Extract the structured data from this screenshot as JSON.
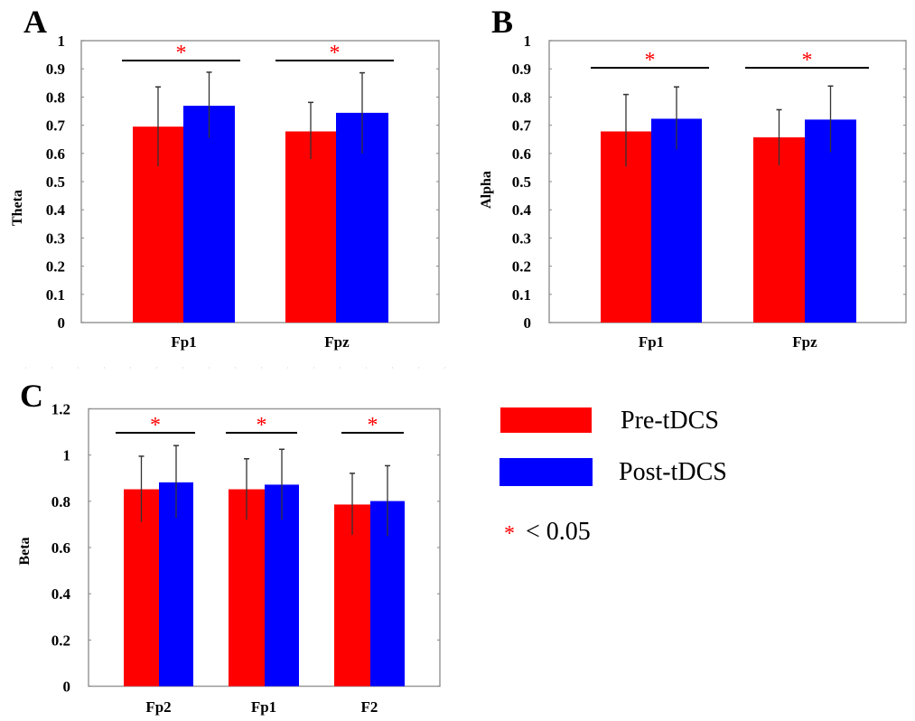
{
  "colors": {
    "pre": "#ff0000",
    "post": "#0000ff",
    "star": "#ff0000",
    "frame": "#999999",
    "error": "#333333",
    "sig_line": "#000000"
  },
  "legend": {
    "items": [
      {
        "label": "Pre-tDCS",
        "color": "#ff0000"
      },
      {
        "label": "Post-tDCS",
        "color": "#0000ff"
      }
    ],
    "significance_star": "*",
    "significance_text": "< 0.05"
  },
  "chart_data": [
    {
      "panel": "A",
      "type": "bar",
      "ylabel": "Theta",
      "xlabel": "",
      "ylim": [
        0,
        1
      ],
      "yticks": [
        "0",
        "0.1",
        "0.2",
        "0.3",
        "0.4",
        "0.5",
        "0.6",
        "0.7",
        "0.8",
        "0.9",
        "1"
      ],
      "ytick_values": [
        0,
        0.1,
        0.2,
        0.3,
        0.4,
        0.5,
        0.6,
        0.7,
        0.8,
        0.9,
        1
      ],
      "categories": [
        "Fp1",
        "Fpz"
      ],
      "series": [
        {
          "name": "Pre-tDCS",
          "values": [
            0.695,
            0.678
          ],
          "err_low": [
            0.554,
            0.58
          ],
          "err_high": [
            0.836,
            0.781
          ]
        },
        {
          "name": "Post-tDCS",
          "values": [
            0.769,
            0.744
          ],
          "err_low": [
            0.655,
            0.6
          ],
          "err_high": [
            0.888,
            0.886
          ]
        }
      ],
      "significance": [
        "*",
        "*"
      ],
      "grid": false
    },
    {
      "panel": "B",
      "type": "bar",
      "ylabel": "Alpha",
      "xlabel": "",
      "ylim": [
        0,
        1
      ],
      "yticks": [
        "0",
        "0.1",
        "0.2",
        "0.3",
        "0.4",
        "0.5",
        "0.6",
        "0.7",
        "0.8",
        "0.9",
        "1"
      ],
      "ytick_values": [
        0,
        0.1,
        0.2,
        0.3,
        0.4,
        0.5,
        0.6,
        0.7,
        0.8,
        0.9,
        1
      ],
      "categories": [
        "Fp1",
        "Fpz"
      ],
      "series": [
        {
          "name": "Pre-tDCS",
          "values": [
            0.678,
            0.657
          ],
          "err_low": [
            0.553,
            0.558
          ],
          "err_high": [
            0.809,
            0.755
          ]
        },
        {
          "name": "Post-tDCS",
          "values": [
            0.723,
            0.72
          ],
          "err_low": [
            0.614,
            0.604
          ],
          "err_high": [
            0.836,
            0.839
          ]
        }
      ],
      "significance": [
        "*",
        "*"
      ],
      "grid": false
    },
    {
      "panel": "C",
      "type": "bar",
      "ylabel": "Beta",
      "xlabel": "",
      "ylim": [
        0,
        1.2
      ],
      "yticks": [
        "0",
        "0.2",
        "0.4",
        "0.6",
        "0.8",
        "1",
        "1.2"
      ],
      "ytick_values": [
        0,
        0.2,
        0.4,
        0.6,
        0.8,
        1,
        1.2
      ],
      "categories": [
        "Fp2",
        "Fp1",
        "F2"
      ],
      "series": [
        {
          "name": "Pre-tDCS",
          "values": [
            0.852,
            0.852,
            0.786
          ],
          "err_low": [
            0.71,
            0.72,
            0.655
          ],
          "err_high": [
            0.995,
            0.984,
            0.921
          ]
        },
        {
          "name": "Post-tDCS",
          "values": [
            0.882,
            0.872,
            0.801
          ],
          "err_low": [
            0.727,
            0.72,
            0.649
          ],
          "err_high": [
            1.041,
            1.025,
            0.954
          ]
        }
      ],
      "significance": [
        "*",
        "*",
        "*"
      ],
      "grid": false
    }
  ]
}
